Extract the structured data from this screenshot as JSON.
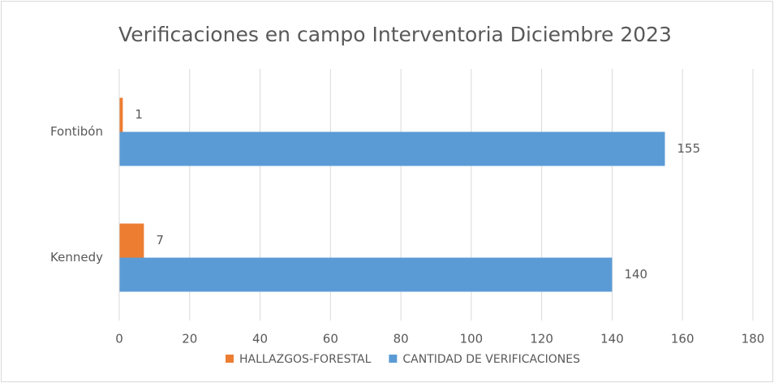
{
  "chart_data": {
    "type": "hbar",
    "title": "Verificaciones en campo Interventoria Diciembre 2023",
    "categories": [
      "Fontibón",
      "Kennedy"
    ],
    "series": [
      {
        "name": "HALLAZGOS-FORESTAL",
        "color": "#ed7d31",
        "values": [
          1,
          7
        ]
      },
      {
        "name": "CANTIDAD DE VERIFICACIONES",
        "color": "#5b9bd5",
        "values": [
          155,
          140
        ]
      }
    ],
    "xlim": [
      0,
      180
    ],
    "xticks": [
      0,
      20,
      40,
      60,
      80,
      100,
      120,
      140,
      160,
      180
    ],
    "grid": true,
    "legend": "bottom"
  }
}
